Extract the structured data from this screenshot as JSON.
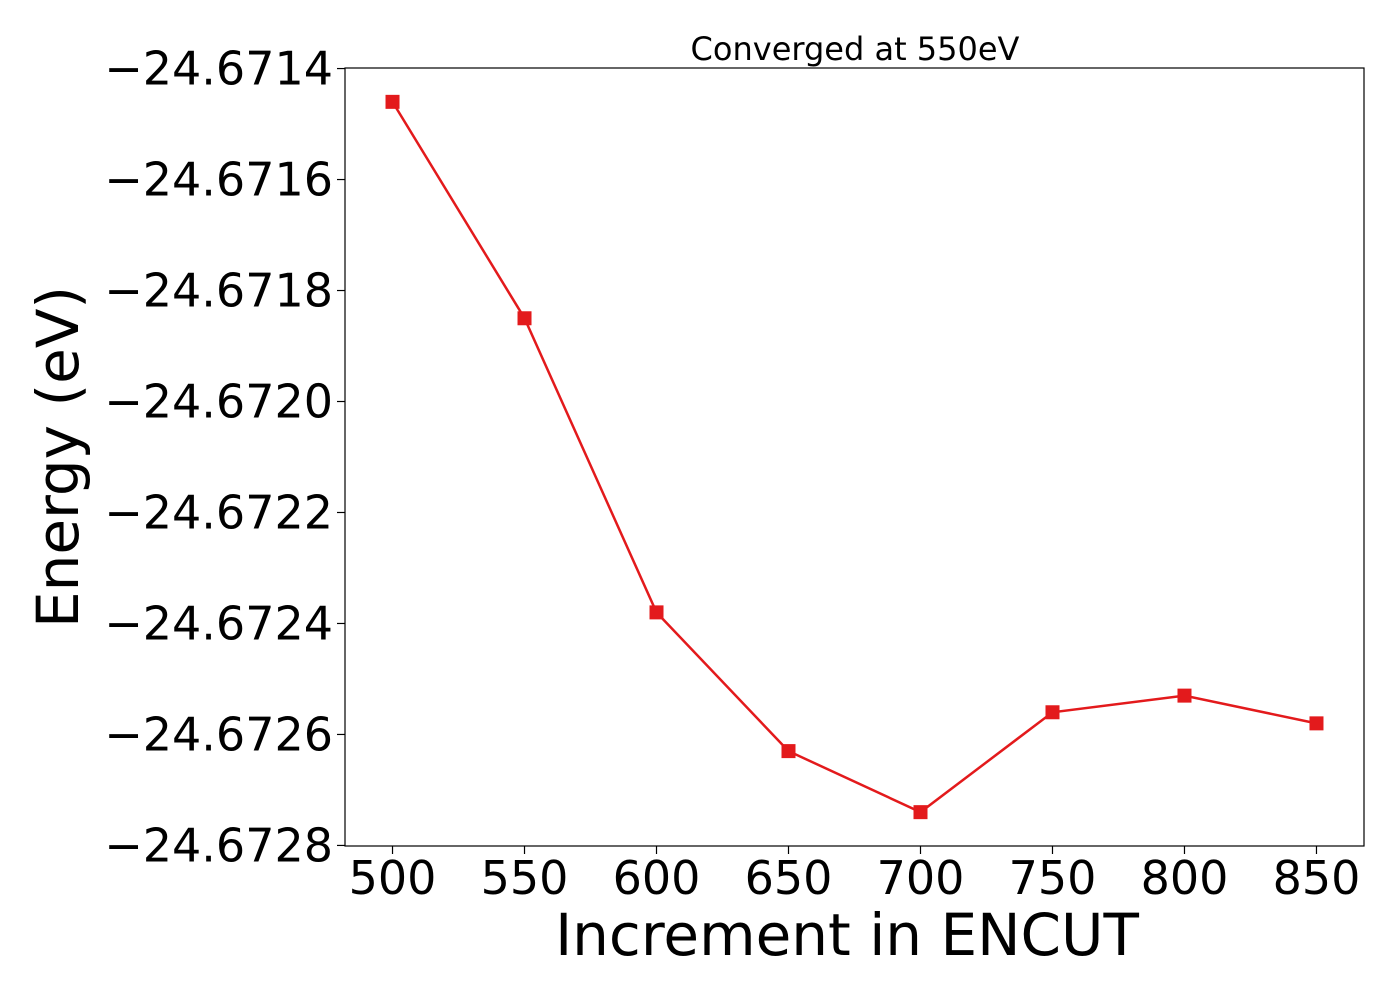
{
  "chart_data": {
    "type": "line",
    "title": "Converged at 550eV",
    "xlabel": "Increment in ENCUT",
    "ylabel": "Energy (eV)",
    "x": [
      500,
      550,
      600,
      650,
      700,
      750,
      800,
      850
    ],
    "series": [
      {
        "values": [
          -24.67146,
          -24.67185,
          -24.67238,
          -24.67263,
          -24.67274,
          -24.67256,
          -24.67253,
          -24.67258
        ],
        "color": "#e31a1c",
        "marker": "square"
      }
    ],
    "xticks": [
      500,
      550,
      600,
      650,
      700,
      750,
      800,
      850
    ],
    "xtick_labels": [
      "500",
      "550",
      "600",
      "650",
      "700",
      "750",
      "800",
      "850"
    ],
    "yticks": [
      -24.6714,
      -24.6716,
      -24.6718,
      -24.672,
      -24.6722,
      -24.6724,
      -24.6726,
      -24.6728
    ],
    "ytick_labels": [
      "−24.6714",
      "−24.6716",
      "−24.6718",
      "−24.6720",
      "−24.6722",
      "−24.6724",
      "−24.6726",
      "−24.6728"
    ],
    "xlim": [
      482,
      868
    ],
    "ylim": [
      -24.672801,
      -24.671399
    ],
    "grid": false,
    "legend": "none"
  }
}
